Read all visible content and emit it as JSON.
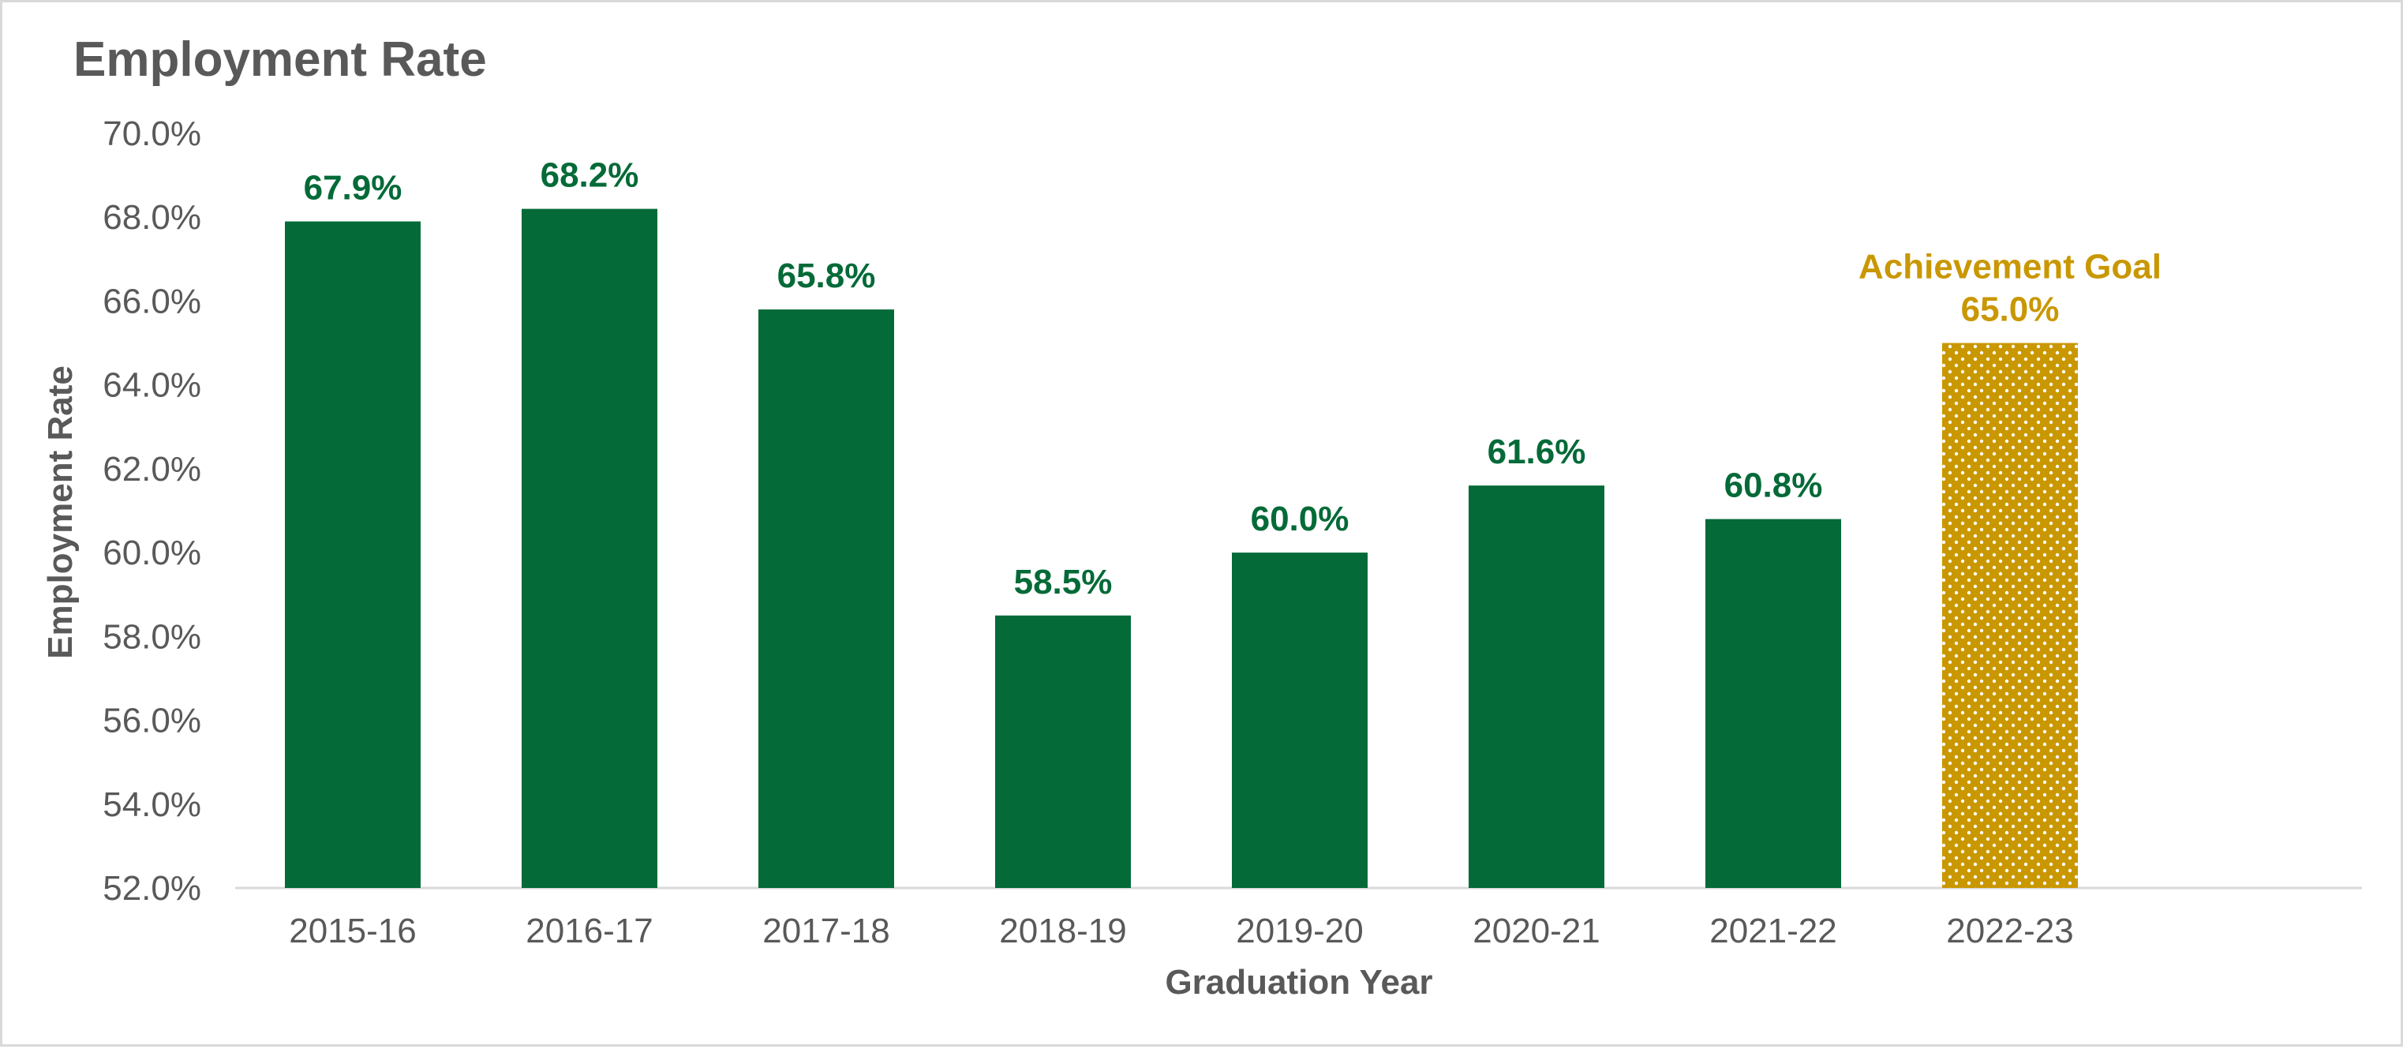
{
  "chart_data": {
    "type": "bar",
    "title": "Employment Rate",
    "xlabel": "Graduation Year",
    "ylabel": "Employment Rate",
    "ylim": [
      52.0,
      70.0
    ],
    "y_tick_step": 2.0,
    "y_tick_format": "percent_1dp",
    "y_ticks": [
      "52.0%",
      "54.0%",
      "56.0%",
      "58.0%",
      "60.0%",
      "62.0%",
      "64.0%",
      "66.0%",
      "68.0%",
      "70.0%"
    ],
    "grid": false,
    "legend": "none",
    "categories": [
      "2015-16",
      "2016-17",
      "2017-18",
      "2018-19",
      "2019-20",
      "2020-21",
      "2021-22",
      "2022-23"
    ],
    "values": [
      67.9,
      68.2,
      65.8,
      58.5,
      60.0,
      61.6,
      60.8,
      65.0
    ],
    "data_labels": [
      "67.9%",
      "68.2%",
      "65.8%",
      "58.5%",
      "60.0%",
      "61.6%",
      "60.8%",
      "65.0%"
    ],
    "goal": {
      "category": "2022-23",
      "annotation": "Achievement Goal",
      "pattern": "dotted"
    },
    "colors": {
      "bar": "#046A38",
      "goal_bar": "#C99700",
      "axis": "#D9D9D9",
      "text": "#595959"
    }
  }
}
